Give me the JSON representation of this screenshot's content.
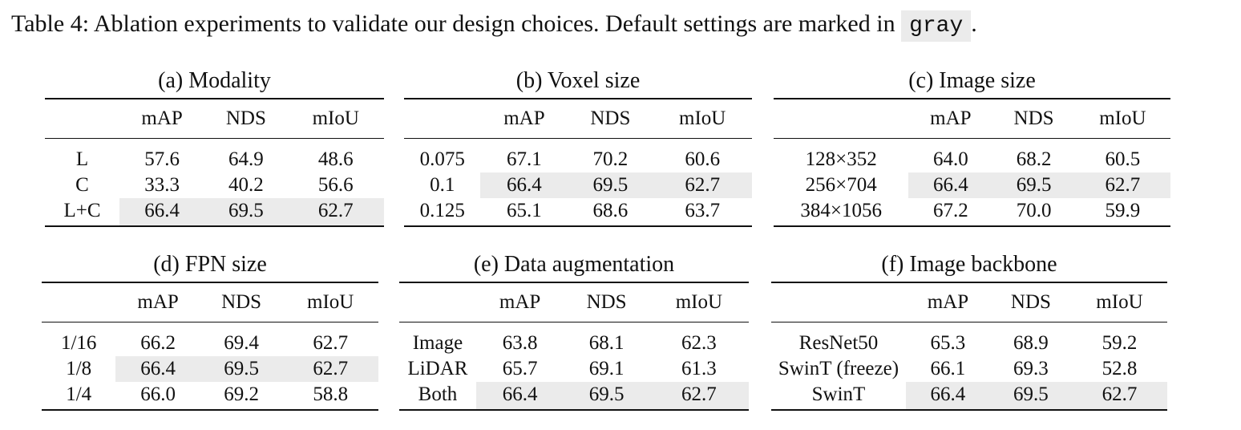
{
  "caption": {
    "text": "Table 4: Ablation experiments to validate our design choices. Default settings are marked in",
    "gray_word": "gray",
    "end": "."
  },
  "tables": [
    {
      "title": "(a) Modality",
      "columns": [
        "",
        "mAP",
        "NDS",
        "mIoU"
      ],
      "rows": [
        {
          "label": "L",
          "cells": [
            {
              "v": "57.6"
            },
            {
              "v": "64.9"
            },
            {
              "v": "48.6"
            }
          ]
        },
        {
          "label": "C",
          "cells": [
            {
              "v": "33.3"
            },
            {
              "v": "40.2"
            },
            {
              "v": "56.6"
            }
          ]
        },
        {
          "label": "L+C",
          "cells": [
            {
              "v": "66.4",
              "bold": true,
              "hl": true
            },
            {
              "v": "69.5",
              "bold": true,
              "hl": true
            },
            {
              "v": "62.7",
              "bold": true,
              "hl": true
            }
          ]
        }
      ]
    },
    {
      "title": "(b) Voxel size",
      "columns": [
        "",
        "mAP",
        "NDS",
        "mIoU"
      ],
      "rows": [
        {
          "label": "0.075",
          "cells": [
            {
              "v": "67.1",
              "bold": true
            },
            {
              "v": "70.2",
              "bold": true
            },
            {
              "v": "60.6"
            }
          ]
        },
        {
          "label": "0.1",
          "cells": [
            {
              "v": "66.4",
              "hl": true
            },
            {
              "v": "69.5",
              "hl": true
            },
            {
              "v": "62.7",
              "hl": true
            }
          ]
        },
        {
          "label": "0.125",
          "cells": [
            {
              "v": "65.1"
            },
            {
              "v": "68.6"
            },
            {
              "v": "63.7",
              "bold": true
            }
          ]
        }
      ]
    },
    {
      "title": "(c) Image size",
      "columns": [
        "",
        "mAP",
        "NDS",
        "mIoU"
      ],
      "rows": [
        {
          "label": "128×352",
          "cells": [
            {
              "v": "64.0"
            },
            {
              "v": "68.2"
            },
            {
              "v": "60.5"
            }
          ]
        },
        {
          "label": "256×704",
          "cells": [
            {
              "v": "66.4",
              "hl": true
            },
            {
              "v": "69.5",
              "hl": true
            },
            {
              "v": "62.7",
              "bold": true,
              "hl": true
            }
          ]
        },
        {
          "label": "384×1056",
          "cells": [
            {
              "v": "67.2",
              "bold": true
            },
            {
              "v": "70.0",
              "bold": true
            },
            {
              "v": "59.9"
            }
          ]
        }
      ]
    },
    {
      "title": "(d) FPN size",
      "columns": [
        "",
        "mAP",
        "NDS",
        "mIoU"
      ],
      "rows": [
        {
          "label": "1/16",
          "cells": [
            {
              "v": "66.2"
            },
            {
              "v": "69.4"
            },
            {
              "v": "62.7",
              "bold": true
            }
          ]
        },
        {
          "label": "1/8",
          "cells": [
            {
              "v": "66.4",
              "bold": true,
              "hl": true
            },
            {
              "v": "69.5",
              "bold": true,
              "hl": true
            },
            {
              "v": "62.7",
              "bold": true,
              "hl": true
            }
          ]
        },
        {
          "label": "1/4",
          "cells": [
            {
              "v": "66.0"
            },
            {
              "v": "69.2"
            },
            {
              "v": "58.8"
            }
          ]
        }
      ]
    },
    {
      "title": "(e) Data augmentation",
      "columns": [
        "",
        "mAP",
        "NDS",
        "mIoU"
      ],
      "rows": [
        {
          "label": "Image",
          "cells": [
            {
              "v": "63.8"
            },
            {
              "v": "68.1"
            },
            {
              "v": "62.3"
            }
          ]
        },
        {
          "label": "LiDAR",
          "cells": [
            {
              "v": "65.7"
            },
            {
              "v": "69.1"
            },
            {
              "v": "61.3"
            }
          ]
        },
        {
          "label": "Both",
          "cells": [
            {
              "v": "66.4",
              "bold": true,
              "hl": true
            },
            {
              "v": "69.5",
              "bold": true,
              "hl": true
            },
            {
              "v": "62.7",
              "bold": true,
              "hl": true
            }
          ]
        }
      ]
    },
    {
      "title": "(f) Image backbone",
      "columns": [
        "",
        "mAP",
        "NDS",
        "mIoU"
      ],
      "rows": [
        {
          "label": "ResNet50",
          "cells": [
            {
              "v": "65.3"
            },
            {
              "v": "68.9"
            },
            {
              "v": "59.2"
            }
          ]
        },
        {
          "label": "SwinT (freeze)",
          "cells": [
            {
              "v": "66.1"
            },
            {
              "v": "69.3"
            },
            {
              "v": "52.8"
            }
          ]
        },
        {
          "label": "SwinT",
          "cells": [
            {
              "v": "66.4",
              "bold": true,
              "hl": true
            },
            {
              "v": "69.5",
              "bold": true,
              "hl": true
            },
            {
              "v": "62.7",
              "bold": true,
              "hl": true
            }
          ]
        }
      ]
    }
  ]
}
